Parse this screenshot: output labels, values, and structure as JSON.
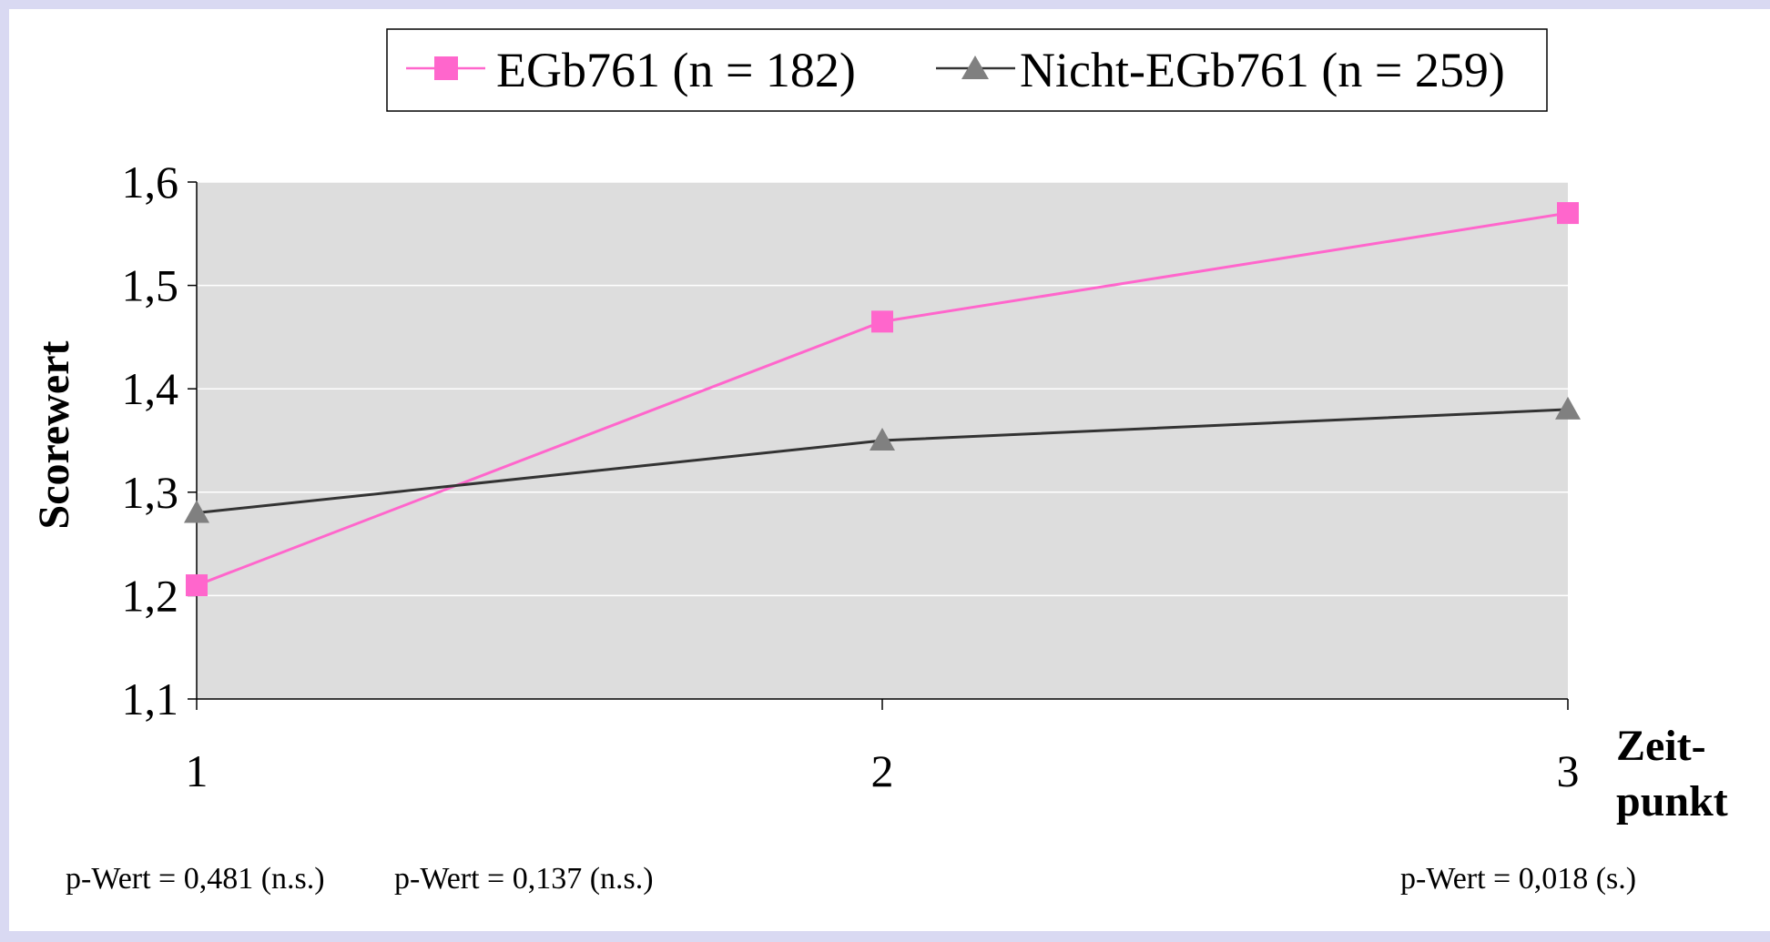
{
  "chart_data": {
    "type": "line",
    "x": [
      1,
      2,
      3
    ],
    "categories": [
      "1",
      "2",
      "3"
    ],
    "series": [
      {
        "name": "EGb761 (n = 182)",
        "values": [
          1.21,
          1.465,
          1.57
        ],
        "color": "#ff66cc",
        "marker": "square"
      },
      {
        "name": "Nicht-EGb761 (n = 259)",
        "values": [
          1.28,
          1.35,
          1.38
        ],
        "color": "#333333",
        "marker": "triangle"
      }
    ],
    "ylabel": "Scorewert",
    "xlabel_line1": "Zeit-",
    "xlabel_line2": "punkt",
    "ylim": [
      1.1,
      1.6
    ],
    "yticks": [
      "1,1",
      "1,2",
      "1,3",
      "1,4",
      "1,5",
      "1,6"
    ],
    "grid": true,
    "plot_background": "#dddddd",
    "legend_position": "top",
    "annotations": [
      "p-Wert = 0,481  (n.s.)",
      "p-Wert = 0,137  (n.s.)",
      "p-Wert = 0,018  (s.)"
    ]
  }
}
